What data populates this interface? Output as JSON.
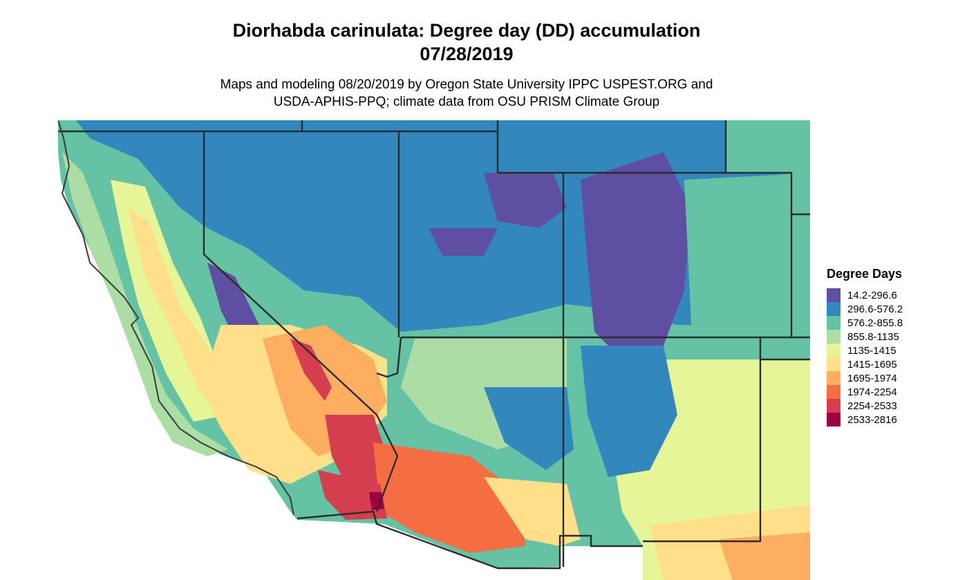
{
  "title_line1": "Diorhabda carinulata: Degree day (DD) accumulation",
  "title_line2": "07/28/2019",
  "subtitle_line1": "Maps and modeling 08/20/2019 by Oregon State University IPPC USPEST.ORG and",
  "subtitle_line2": "USDA-APHIS-PPQ; climate data from OSU PRISM Climate Group",
  "legend": {
    "title": "Degree Days",
    "items": [
      {
        "label": "14.2-296.6",
        "color": "#5e4fa2"
      },
      {
        "label": "296.6-576.2",
        "color": "#3288bd"
      },
      {
        "label": "576.2-855.8",
        "color": "#66c2a5"
      },
      {
        "label": "855.8-1135",
        "color": "#abdda4"
      },
      {
        "label": "1135-1415",
        "color": "#e6f598"
      },
      {
        "label": "1415-1695",
        "color": "#fee08b"
      },
      {
        "label": "1695-1974",
        "color": "#fdae61"
      },
      {
        "label": "1974-2254",
        "color": "#f46d43"
      },
      {
        "label": "2254-2533",
        "color": "#d53e4f"
      },
      {
        "label": "2533-2816",
        "color": "#9e0142"
      }
    ]
  }
}
